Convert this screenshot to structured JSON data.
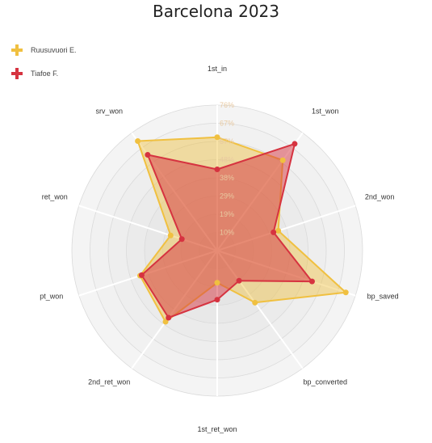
{
  "chart_data": {
    "type": "radar",
    "title": "Barcelona 2023",
    "axes": [
      "1st_in",
      "1st_won",
      "2nd_won",
      "bp_saved",
      "bp_converted",
      "1st_ret_won",
      "2nd_ret_won",
      "pt_won",
      "ret_won",
      "srv_won"
    ],
    "radial_ticks": [
      "10%",
      "19%",
      "29%",
      "38%",
      "48%",
      "57%",
      "67%",
      "76%"
    ],
    "rmax": 86,
    "series": [
      {
        "name": "Ruusuvuori E.",
        "color": "#f0c040",
        "values": [
          67,
          66,
          38,
          80,
          38,
          19,
          52,
          48,
          29,
          80
        ]
      },
      {
        "name": "Tiafoe F.",
        "color": "#d63340",
        "values": [
          48,
          78,
          35,
          59,
          22,
          29,
          49,
          47,
          22,
          70
        ]
      }
    ]
  }
}
